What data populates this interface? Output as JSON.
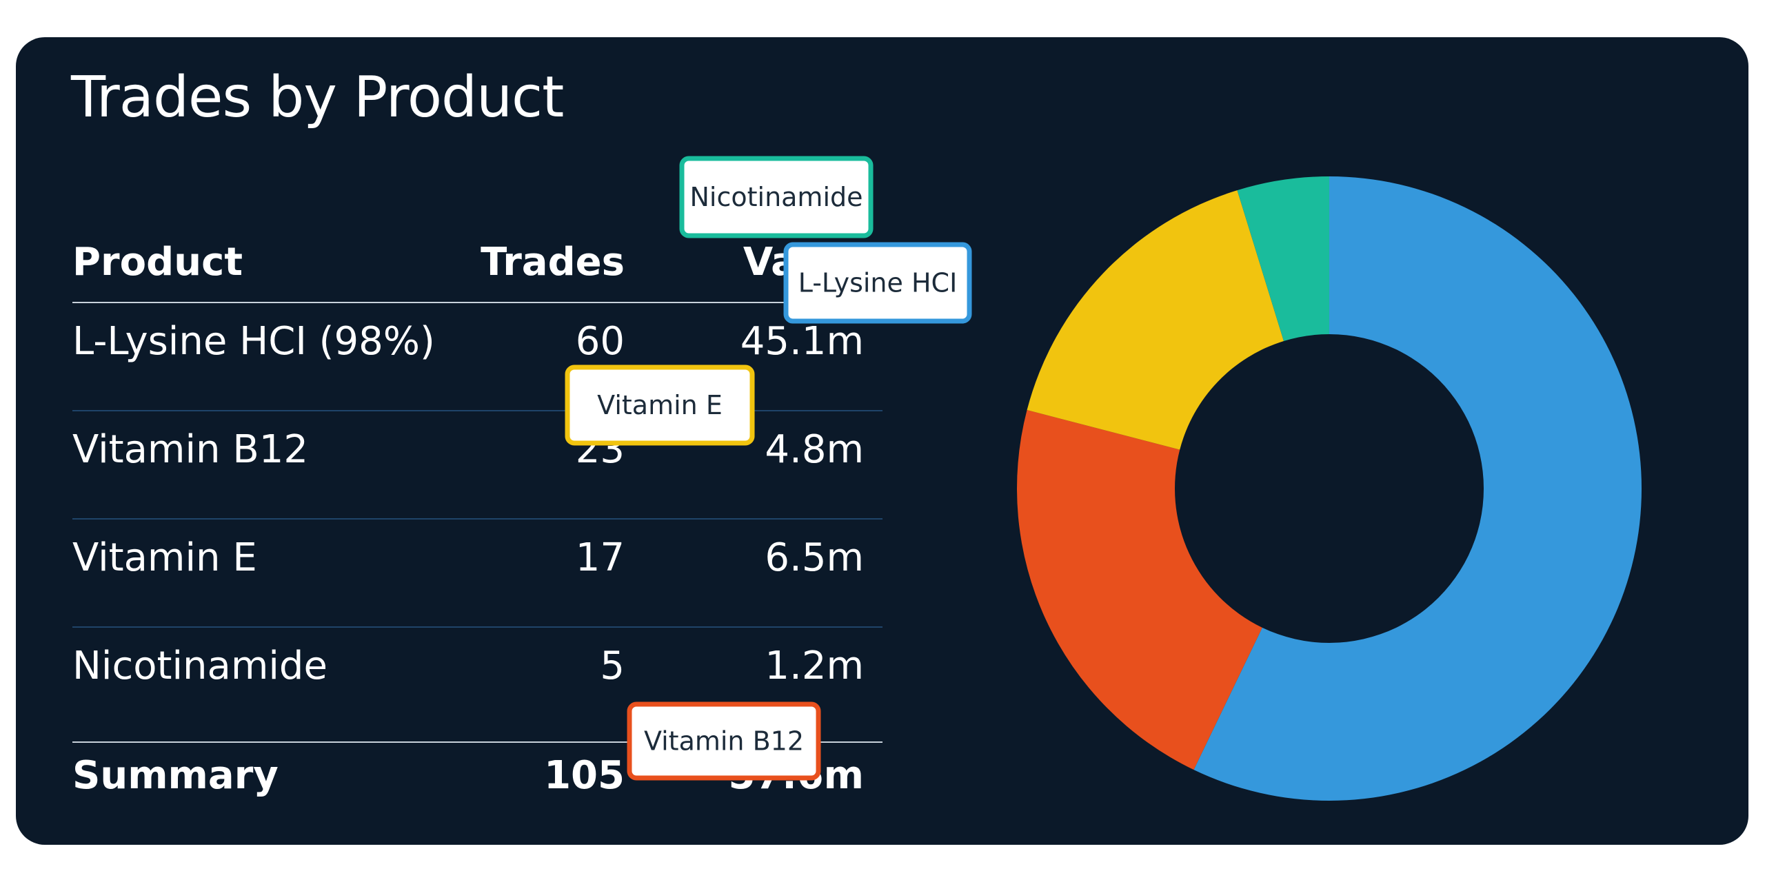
{
  "title": "Trades by Product",
  "table": {
    "headers": {
      "product": "Product",
      "trades": "Trades",
      "value": "Value"
    },
    "rows": [
      {
        "product": "L-Lysine HCI (98%)",
        "trades": "60",
        "value": "45.1m"
      },
      {
        "product": "Vitamin B12",
        "trades": "23",
        "value": "4.8m"
      },
      {
        "product": "Vitamin E",
        "trades": "17",
        "value": "6.5m"
      },
      {
        "product": "Nicotinamide",
        "trades": "5",
        "value": "1.2m"
      }
    ],
    "summary": {
      "label": "Summary",
      "trades": "105",
      "value": "57.6m"
    }
  },
  "chart_data": {
    "type": "pie",
    "donut": true,
    "categories": [
      "L-Lysine HCI",
      "Vitamin B12",
      "Vitamin E",
      "Nicotinamide"
    ],
    "values": [
      60,
      23,
      17,
      5
    ],
    "colors": [
      "#3598dc",
      "#e8501d",
      "#f1c40f",
      "#1abc9c"
    ],
    "start": "top",
    "direction": "clockwise"
  }
}
